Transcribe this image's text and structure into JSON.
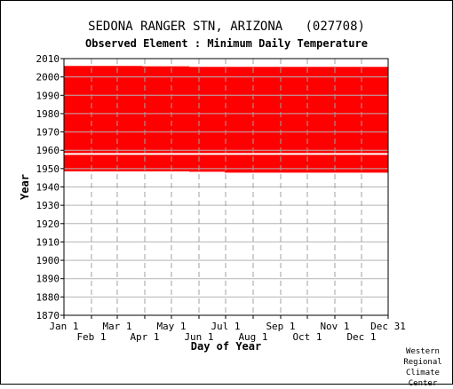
{
  "chart_data": {
    "type": "heatmap",
    "title": "SEDONA RANGER STN, ARIZONA   (027708)",
    "subtitle": "Observed Element : Minimum Daily Temperature",
    "xlabel": "Day of Year",
    "ylabel": "Year",
    "ylim": [
      1870,
      2010
    ],
    "yticks": [
      1870,
      1880,
      1890,
      1900,
      1910,
      1920,
      1930,
      1940,
      1950,
      1960,
      1970,
      1980,
      1990,
      2000,
      2010
    ],
    "xlim": [
      1,
      366
    ],
    "xticks_upper": [
      {
        "label": "Jan 1",
        "day": 1
      },
      {
        "label": "Mar 1",
        "day": 61
      },
      {
        "label": "May 1",
        "day": 122
      },
      {
        "label": "Jul 1",
        "day": 183
      },
      {
        "label": "Sep 1",
        "day": 245
      },
      {
        "label": "Nov 1",
        "day": 306
      },
      {
        "label": "Dec 31",
        "day": 366
      }
    ],
    "xticks_lower": [
      {
        "label": "Feb 1",
        "day": 32
      },
      {
        "label": "Apr 1",
        "day": 92
      },
      {
        "label": "Jun 1",
        "day": 153
      },
      {
        "label": "Aug 1",
        "day": 214
      },
      {
        "label": "Oct 1",
        "day": 275
      },
      {
        "label": "Dec 1",
        "day": 336
      }
    ],
    "grid": true,
    "data_color": "#ff0000",
    "coverage": [
      {
        "from_day": 1,
        "to_day": 89,
        "start_year": 1948.5,
        "end_year": 2006
      },
      {
        "from_day": 89,
        "to_day": 142,
        "start_year": 1948.5,
        "end_year": 2005.8
      },
      {
        "from_day": 142,
        "to_day": 182,
        "start_year": 1948.3,
        "end_year": 2005.5
      },
      {
        "from_day": 182,
        "to_day": 366,
        "start_year": 1947.8,
        "end_year": 2005.5
      }
    ],
    "missing_years": [
      1958
    ]
  },
  "credit": [
    "Western",
    "Regional",
    "Climate",
    "Center"
  ]
}
